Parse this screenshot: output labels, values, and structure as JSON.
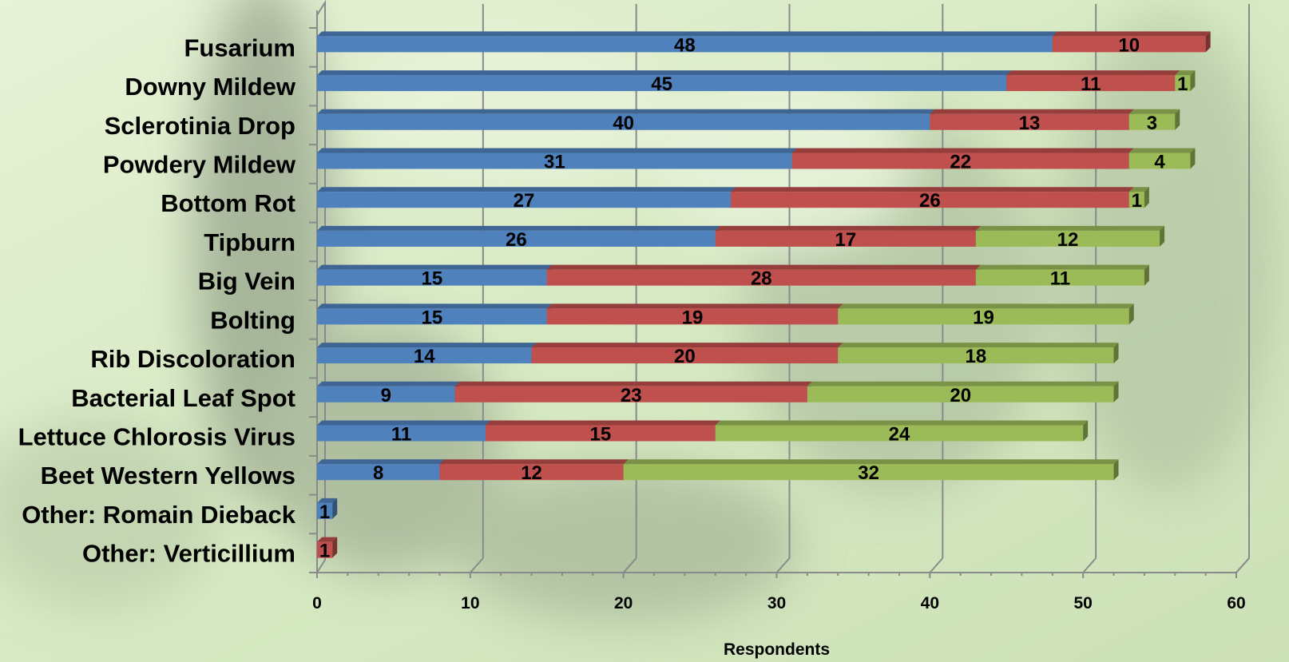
{
  "chart_data": {
    "type": "bar",
    "orientation": "horizontal",
    "stacked": true,
    "categories": [
      "Fusarium",
      "Downy Mildew",
      "Sclerotinia Drop",
      "Powdery Mildew",
      "Bottom Rot",
      "Tipburn",
      "Big Vein",
      "Bolting",
      "Rib Discoloration",
      "Bacterial Leaf Spot",
      "Lettuce Chlorosis Virus",
      "Beet Western Yellows",
      "Other: Romain Dieback",
      "Other: Verticillium"
    ],
    "series": [
      {
        "color": "#4f81bd",
        "values": [
          48,
          45,
          40,
          31,
          27,
          26,
          15,
          15,
          14,
          9,
          11,
          8,
          1,
          0
        ]
      },
      {
        "color": "#c0504d",
        "values": [
          10,
          11,
          13,
          22,
          26,
          17,
          28,
          19,
          20,
          23,
          15,
          12,
          0,
          1
        ]
      },
      {
        "color": "#9bbb59",
        "values": [
          0,
          1,
          3,
          4,
          1,
          12,
          11,
          19,
          18,
          20,
          24,
          32,
          0,
          0
        ]
      }
    ],
    "xlabel": "Respondents",
    "xlim": [
      0,
      60
    ],
    "xticks": [
      0,
      10,
      20,
      30,
      40,
      50,
      60
    ],
    "grid": true,
    "legend": "none",
    "style": "3d-bar"
  }
}
